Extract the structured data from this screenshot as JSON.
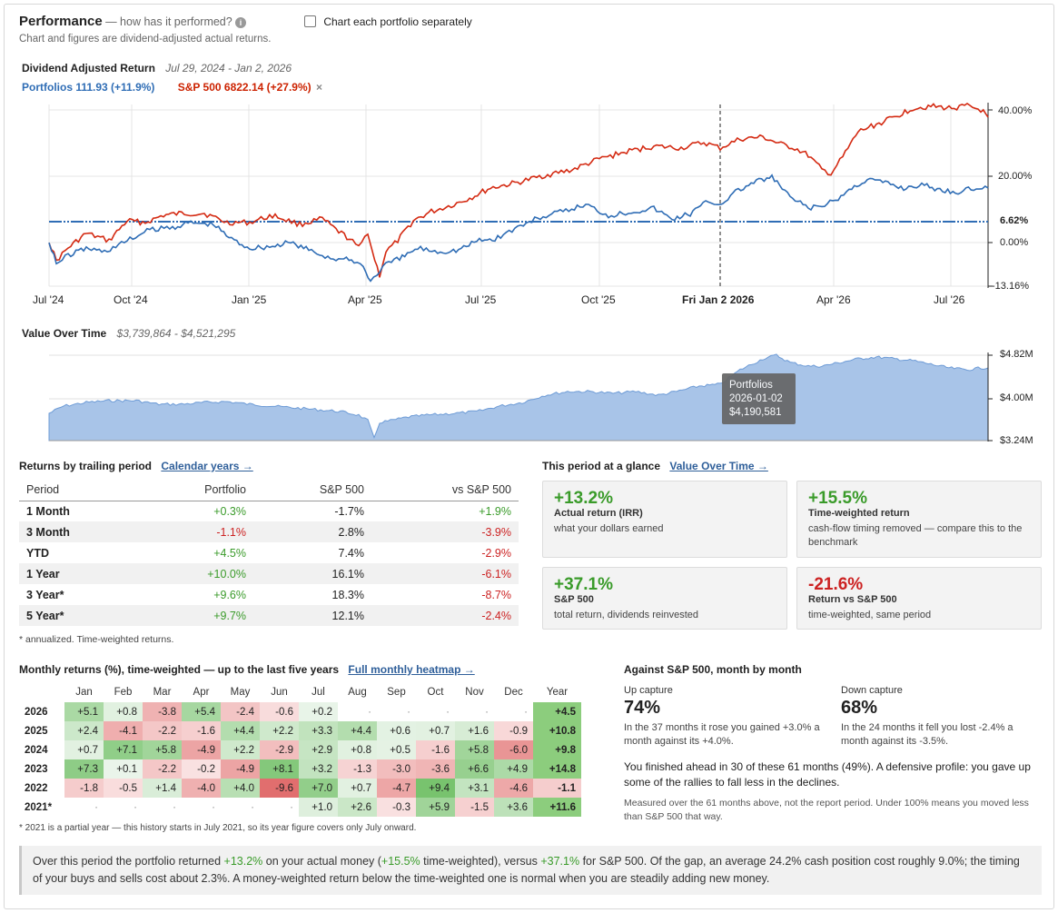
{
  "header": {
    "title": "Performance",
    "subtitle": "— how has it performed?",
    "note": "Chart and figures are dividend-adjusted actual returns.",
    "checkbox_label": "Chart each portfolio separately"
  },
  "returns_chart": {
    "title": "Dividend Adjusted Return",
    "range": "Jul 29, 2024 - Jan 2, 2026",
    "legend_portfolio": "Portfolios 111.93 (+11.9%)",
    "legend_sp": "S&P 500 6822.14 (+27.9%)",
    "legend_close": "×",
    "x_ticks": [
      "Jul '24",
      "Oct '24",
      "Jan '25",
      "Apr '25",
      "Jul '25",
      "Oct '25",
      "Fri Jan 2 2026",
      "Apr '26",
      "Jul '26"
    ],
    "y_ticks": [
      "40.00%",
      "20.00%",
      "6.62%",
      "0.00%",
      "-13.16%"
    ]
  },
  "value_chart": {
    "title": "Value Over Time",
    "range": "$3,739,864 - $4,521,295",
    "y_ticks": [
      "$4.82M",
      "$4.00M",
      "$3.24M"
    ],
    "tooltip_name": "Portfolios",
    "tooltip_date": "2026-01-02",
    "tooltip_value": "$4,190,581"
  },
  "trailing": {
    "title": "Returns by trailing period",
    "link": "Calendar years →",
    "headers": [
      "Period",
      "Portfolio",
      "S&P 500",
      "vs S&P 500"
    ],
    "rows": [
      {
        "period": "1 Month",
        "portfolio": "+0.3%",
        "sp": "-1.7%",
        "vs": "+1.9%"
      },
      {
        "period": "3 Month",
        "portfolio": "-1.1%",
        "sp": "2.8%",
        "vs": "-3.9%"
      },
      {
        "period": "YTD",
        "portfolio": "+4.5%",
        "sp": "7.4%",
        "vs": "-2.9%"
      },
      {
        "period": "1 Year",
        "portfolio": "+10.0%",
        "sp": "16.1%",
        "vs": "-6.1%"
      },
      {
        "period": "3 Year*",
        "portfolio": "+9.6%",
        "sp": "18.3%",
        "vs": "-8.7%"
      },
      {
        "period": "5 Year*",
        "portfolio": "+9.7%",
        "sp": "12.1%",
        "vs": "-2.4%"
      }
    ],
    "footnote": "* annualized. Time-weighted returns."
  },
  "glance": {
    "title": "This period at a glance",
    "link": "Value Over Time →",
    "cards": [
      {
        "value": "+13.2%",
        "label": "Actual return (IRR)",
        "sub": "what your dollars earned"
      },
      {
        "value": "+15.5%",
        "label": "Time-weighted return",
        "sub": "cash-flow timing removed — compare this to the benchmark"
      },
      {
        "value": "+37.1%",
        "label": "S&P 500",
        "sub": "total return, dividends reinvested"
      },
      {
        "value": "-21.6%",
        "label": "Return vs S&P 500",
        "sub": "time-weighted, same period"
      }
    ]
  },
  "monthly": {
    "title": "Monthly returns (%), time-weighted — up to the last five years",
    "link": "Full monthly heatmap →",
    "headers": [
      "",
      "Jan",
      "Feb",
      "Mar",
      "Apr",
      "May",
      "Jun",
      "Jul",
      "Aug",
      "Sep",
      "Oct",
      "Nov",
      "Dec",
      "Year"
    ],
    "rows": [
      {
        "year": "2026",
        "cells": [
          "+5.1",
          "+0.8",
          "-3.8",
          "+5.4",
          "-2.4",
          "-0.6",
          "+0.2",
          "·",
          "·",
          "·",
          "·",
          "·"
        ],
        "total": "+4.5"
      },
      {
        "year": "2025",
        "cells": [
          "+2.4",
          "-4.1",
          "-2.2",
          "-1.6",
          "+4.4",
          "+2.2",
          "+3.3",
          "+4.4",
          "+0.6",
          "+0.7",
          "+1.6",
          "-0.9"
        ],
        "total": "+10.8"
      },
      {
        "year": "2024",
        "cells": [
          "+0.7",
          "+7.1",
          "+5.8",
          "-4.9",
          "+2.2",
          "-2.9",
          "+2.9",
          "+0.8",
          "+0.5",
          "-1.6",
          "+5.8",
          "-6.0"
        ],
        "total": "+9.8"
      },
      {
        "year": "2023",
        "cells": [
          "+7.3",
          "+0.1",
          "-2.2",
          "-0.2",
          "-4.9",
          "+8.1",
          "+3.2",
          "-1.3",
          "-3.0",
          "-3.6",
          "+6.6",
          "+4.9"
        ],
        "total": "+14.8"
      },
      {
        "year": "2022",
        "cells": [
          "-1.8",
          "-0.5",
          "+1.4",
          "-4.0",
          "+4.0",
          "-9.6",
          "+7.0",
          "+0.7",
          "-4.7",
          "+9.4",
          "+3.1",
          "-4.6"
        ],
        "total": "-1.1"
      },
      {
        "year": "2021*",
        "cells": [
          "·",
          "·",
          "·",
          "·",
          "·",
          "·",
          "+1.0",
          "+2.6",
          "-0.3",
          "+5.9",
          "-1.5",
          "+3.6"
        ],
        "total": "+11.6"
      }
    ],
    "footnote": "* 2021 is a partial year — this history starts in July 2021, so its year figure covers only July onward."
  },
  "capture": {
    "title": "Against S&P 500, month by month",
    "up_label": "Up capture",
    "up_value": "74%",
    "up_desc": "In the 37 months it rose you gained +3.0% a month against its +4.0%.",
    "down_label": "Down capture",
    "down_value": "68%",
    "down_desc": "In the 24 months it fell you lost -2.4% a month against its -3.5%.",
    "body": "You finished ahead in 30 of these 61 months (49%). A defensive profile: you gave up some of the rallies to fall less in the declines.",
    "note": "Measured over the 61 months above, not the report period. Under 100% means you moved less than S&P 500 that way."
  },
  "summary": {
    "p1": "Over this period the portfolio returned ",
    "irr": "+13.2%",
    "p2": " on your actual money (",
    "twr": "+15.5%",
    "p3": " time-weighted), versus ",
    "sp": "+37.1%",
    "p4": " for S&P 500. Of the gap, an average 24.2% cash position cost roughly 9.0%; the timing of your buys and sells cost about 2.3%. A money-weighted return below the time-weighted one is normal when you are steadily adding new money."
  }
}
